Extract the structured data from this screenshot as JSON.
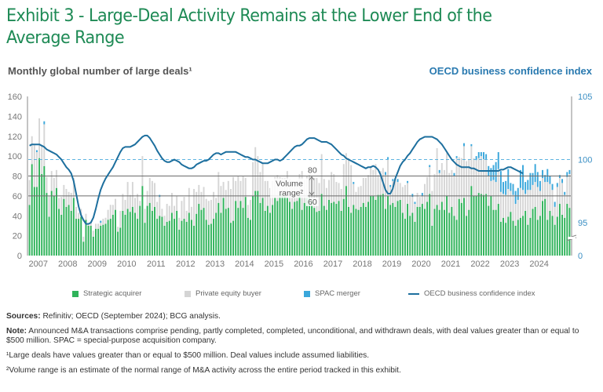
{
  "title": "Exhibit 3 - Large-Deal Activity Remains at the Lower End of the Average Range",
  "left_axis_title": "Monthly global number of large deals¹",
  "right_axis_title": "OECD business confidence index",
  "legend": [
    {
      "label": "Strategic acquirer",
      "color": "#2fb35a",
      "kind": "box"
    },
    {
      "label": "Private equity buyer",
      "color": "#d4d4d4",
      "kind": "box"
    },
    {
      "label": "SPAC merger",
      "color": "#3aa7db",
      "kind": "box"
    },
    {
      "label": "OECD business confidence index",
      "color": "#1d6f9e",
      "kind": "line"
    }
  ],
  "notes": {
    "sources_label": "Sources:",
    "sources_text": " Refinitiv; OECD (September 2024); BCG analysis.",
    "note_label": "Note:",
    "note_text": " Announced M&A transactions comprise pending, partly completed, completed, unconditional, and withdrawn deals, with deal values greater than or equal to $500 million. SPAC = special-purpose acquisition company.",
    "footnote1": "¹Large deals have values greater than or equal to $500 million. Deal values include assumed liabilities.",
    "footnote2": "²Volume range is an estimate of the normal range of M&A activity across the entire period tracked in this exhibit."
  },
  "chart_data": {
    "type": "bar",
    "stacked": true,
    "title": "Exhibit 3 - Large-Deal Activity Remains at the Lower End of the Average Range",
    "xlabel": "",
    "ylabel": "Monthly global number of large deals",
    "y2label": "OECD business confidence index",
    "ylim": [
      0,
      160
    ],
    "yticks": [
      0,
      20,
      40,
      60,
      80,
      100,
      120,
      140,
      160
    ],
    "y2ticks": [
      "0",
      "95",
      "100",
      "105"
    ],
    "y2_broken_axis": true,
    "y2lim": [
      92.5,
      105
    ],
    "x_start": "2007-01",
    "x_end": "2024-08",
    "xtick_labels": [
      "2007",
      "2008",
      "2009",
      "2010",
      "2011",
      "2012",
      "2013",
      "2014",
      "2015",
      "2016",
      "2017",
      "2018",
      "2019",
      "2020",
      "2021",
      "2022",
      "2023",
      "2024"
    ],
    "reference_lines": [
      {
        "value": 80,
        "label": "80",
        "style": "solid"
      },
      {
        "value": 60,
        "label": "60",
        "style": "solid"
      }
    ],
    "oecd_reference": {
      "value": 100,
      "style": "dashed"
    },
    "annotation": {
      "text_line1": "Volume",
      "text_line2": "range²"
    },
    "series": [
      {
        "name": "Strategic acquirer",
        "color": "#2fb35a",
        "values": [
          51,
          92,
          69,
          69,
          98,
          82,
          90,
          63,
          39,
          65,
          60,
          68,
          47,
          41,
          57,
          49,
          51,
          45,
          58,
          37,
          37,
          39,
          14,
          36,
          30,
          30,
          19,
          27,
          27,
          30,
          31,
          32,
          36,
          37,
          41,
          46,
          24,
          28,
          45,
          41,
          47,
          44,
          49,
          43,
          37,
          50,
          70,
          33,
          50,
          53,
          45,
          49,
          37,
          40,
          39,
          30,
          34,
          35,
          43,
          37,
          45,
          26,
          35,
          37,
          34,
          43,
          36,
          30,
          42,
          52,
          46,
          48,
          36,
          31,
          32,
          37,
          43,
          53,
          43,
          58,
          47,
          48,
          33,
          35,
          55,
          48,
          55,
          48,
          59,
          38,
          36,
          60,
          65,
          65,
          53,
          58,
          45,
          50,
          43,
          51,
          58,
          55,
          62,
          62,
          60,
          58,
          54,
          47,
          54,
          55,
          60,
          46,
          53,
          58,
          58,
          55,
          48,
          44,
          45,
          62,
          50,
          46,
          56,
          53,
          54,
          52,
          55,
          45,
          57,
          70,
          49,
          43,
          51,
          47,
          46,
          49,
          53,
          49,
          54,
          60,
          60,
          56,
          61,
          61,
          62,
          47,
          60,
          51,
          53,
          49,
          55,
          56,
          43,
          37,
          52,
          40,
          43,
          34,
          49,
          49,
          52,
          47,
          54,
          62,
          30,
          47,
          51,
          46,
          54,
          46,
          60,
          43,
          49,
          40,
          36,
          57,
          53,
          58,
          40,
          46,
          70,
          60,
          60,
          63,
          62,
          61,
          62,
          50,
          60,
          46,
          46,
          52,
          34,
          38,
          33,
          39,
          44,
          35,
          30,
          36,
          38,
          40,
          45,
          31,
          38,
          47,
          49,
          36,
          40,
          55,
          57,
          36,
          45,
          40,
          31,
          39,
          52,
          41,
          38,
          52,
          48
        ]
      },
      {
        "name": "Private equity buyer",
        "color": "#d4d4d4",
        "values": [
          25,
          28,
          42,
          35,
          40,
          29,
          42,
          16,
          21,
          20,
          18,
          18,
          11,
          18,
          14,
          18,
          13,
          18,
          20,
          12,
          6,
          8,
          5,
          6,
          2,
          4,
          6,
          5,
          5,
          3,
          6,
          6,
          10,
          14,
          10,
          11,
          5,
          17,
          17,
          15,
          27,
          17,
          25,
          15,
          25,
          5,
          30,
          14,
          15,
          25,
          30,
          24,
          17,
          19,
          8,
          10,
          18,
          15,
          20,
          13,
          15,
          12,
          20,
          22,
          11,
          25,
          13,
          37,
          22,
          19,
          18,
          21,
          21,
          24,
          24,
          27,
          15,
          31,
          27,
          16,
          19,
          27,
          34,
          44,
          20,
          32,
          20,
          32,
          19,
          13,
          20,
          34,
          44,
          35,
          31,
          34,
          30,
          25,
          25,
          24,
          21,
          26,
          17,
          16,
          18,
          27,
          23,
          28,
          17,
          21,
          22,
          39,
          23,
          22,
          23,
          22,
          30,
          34,
          28,
          40,
          27,
          22,
          20,
          31,
          28,
          22,
          18,
          22,
          35,
          33,
          49,
          48,
          21,
          17,
          23,
          21,
          25,
          29,
          27,
          30,
          26,
          36,
          20,
          24,
          26,
          34,
          37,
          18,
          22,
          28,
          19,
          17,
          26,
          34,
          21,
          21,
          16,
          18,
          14,
          10,
          8,
          25,
          25,
          27,
          35,
          35,
          57,
          37,
          39,
          40,
          43,
          40,
          37,
          40,
          62,
          42,
          45,
          52,
          55,
          51,
          40,
          38,
          36,
          35,
          38,
          36,
          35,
          30,
          15,
          30,
          28,
          35,
          30,
          24,
          28,
          28,
          21,
          26,
          22,
          20,
          30,
          26,
          17,
          35,
          28,
          24,
          25,
          33,
          25,
          23,
          17,
          38,
          27,
          26,
          18,
          30,
          26,
          32,
          23,
          27,
          34
        ]
      },
      {
        "name": "SPAC merger",
        "color": "#3aa7db",
        "values": [
          0,
          0,
          0,
          2,
          0,
          0,
          3,
          0,
          0,
          0,
          0,
          0,
          0,
          0,
          0,
          0,
          0,
          0,
          0,
          0,
          0,
          0,
          0,
          0,
          0,
          0,
          0,
          0,
          0,
          2,
          0,
          0,
          0,
          0,
          0,
          0,
          0,
          0,
          0,
          0,
          0,
          0,
          0,
          0,
          0,
          0,
          0,
          0,
          0,
          0,
          0,
          0,
          0,
          2,
          0,
          0,
          0,
          0,
          0,
          0,
          0,
          0,
          0,
          0,
          0,
          0,
          0,
          0,
          0,
          0,
          0,
          0,
          0,
          0,
          0,
          0,
          0,
          0,
          0,
          0,
          0,
          0,
          0,
          0,
          0,
          0,
          0,
          0,
          0,
          0,
          0,
          0,
          0,
          0,
          0,
          0,
          0,
          0,
          0,
          0,
          0,
          0,
          0,
          0,
          0,
          0,
          0,
          0,
          0,
          0,
          0,
          0,
          0,
          0,
          0,
          0,
          0,
          0,
          0,
          0,
          0,
          0,
          0,
          0,
          0,
          0,
          0,
          0,
          0,
          0,
          0,
          0,
          2,
          0,
          0,
          0,
          0,
          0,
          0,
          0,
          0,
          0,
          0,
          0,
          0,
          3,
          2,
          2,
          2,
          0,
          3,
          0,
          0,
          0,
          2,
          0,
          3,
          2,
          0,
          0,
          3,
          0,
          0,
          2,
          0,
          0,
          0,
          3,
          0,
          0,
          0,
          0,
          0,
          3,
          2,
          0,
          0,
          3,
          0,
          0,
          2,
          0,
          4,
          6,
          4,
          7,
          5,
          10,
          13,
          15,
          20,
          17,
          21,
          12,
          14,
          20,
          8,
          11,
          13,
          12,
          18,
          25,
          12,
          10,
          17,
          12,
          18,
          15,
          10,
          8,
          7,
          13,
          8,
          6,
          5,
          4,
          3,
          4,
          3,
          5,
          4
        ]
      },
      {
        "name": "OECD business confidence index",
        "color": "#1d6f9e",
        "axis": "right",
        "values": [
          101.1,
          101.2,
          101.2,
          101.2,
          101.2,
          101.1,
          101.0,
          100.8,
          100.7,
          100.6,
          100.5,
          100.4,
          100.2,
          100.0,
          99.7,
          99.4,
          99.2,
          98.9,
          98.3,
          97.3,
          96.3,
          95.6,
          95.2,
          94.9,
          94.9,
          95.0,
          95.4,
          96.1,
          96.9,
          97.6,
          98.1,
          98.5,
          98.8,
          99.1,
          99.4,
          99.8,
          100.2,
          100.6,
          100.9,
          101.0,
          101.0,
          101.0,
          101.1,
          101.2,
          101.4,
          101.6,
          101.8,
          101.9,
          101.9,
          101.7,
          101.4,
          101.1,
          100.7,
          100.4,
          100.1,
          99.9,
          99.8,
          99.8,
          99.9,
          100.0,
          99.9,
          99.8,
          99.6,
          99.5,
          99.4,
          99.3,
          99.3,
          99.4,
          99.6,
          99.7,
          99.8,
          99.9,
          99.9,
          100.0,
          100.2,
          100.4,
          100.5,
          100.5,
          100.4,
          100.5,
          100.6,
          100.6,
          100.6,
          100.6,
          100.6,
          100.5,
          100.4,
          100.3,
          100.2,
          100.2,
          100.1,
          100.0,
          100.0,
          99.9,
          99.8,
          99.7,
          99.7,
          99.7,
          99.8,
          99.9,
          100.0,
          100.0,
          99.9,
          100.0,
          100.2,
          100.4,
          100.6,
          100.8,
          101.0,
          101.1,
          101.1,
          101.2,
          101.4,
          101.6,
          101.7,
          101.7,
          101.7,
          101.6,
          101.5,
          101.4,
          101.4,
          101.4,
          101.3,
          101.2,
          101.0,
          100.8,
          100.6,
          100.4,
          100.3,
          100.1,
          100.0,
          99.9,
          99.8,
          99.7,
          99.6,
          99.5,
          99.4,
          99.3,
          99.4,
          99.4,
          99.5,
          99.4,
          99.2,
          98.8,
          98.2,
          97.6,
          97.3,
          97.3,
          97.7,
          98.5,
          99.0,
          99.5,
          99.8,
          100.0,
          100.3,
          100.5,
          100.8,
          101.1,
          101.4,
          101.6,
          101.7,
          101.8,
          101.8,
          101.8,
          101.8,
          101.7,
          101.6,
          101.4,
          101.2,
          100.9,
          100.6,
          100.3,
          100.0,
          99.8,
          99.6,
          99.5,
          99.4,
          99.4,
          99.4,
          99.4,
          99.3,
          99.3,
          99.2,
          99.1,
          99.1,
          99.1,
          99.1,
          99.1,
          99.1,
          99.1,
          99.1,
          99.1,
          99.2,
          99.2,
          99.3,
          99.4,
          99.4,
          99.3,
          99.2,
          99.1,
          99.0,
          98.9
        ]
      }
    ]
  }
}
